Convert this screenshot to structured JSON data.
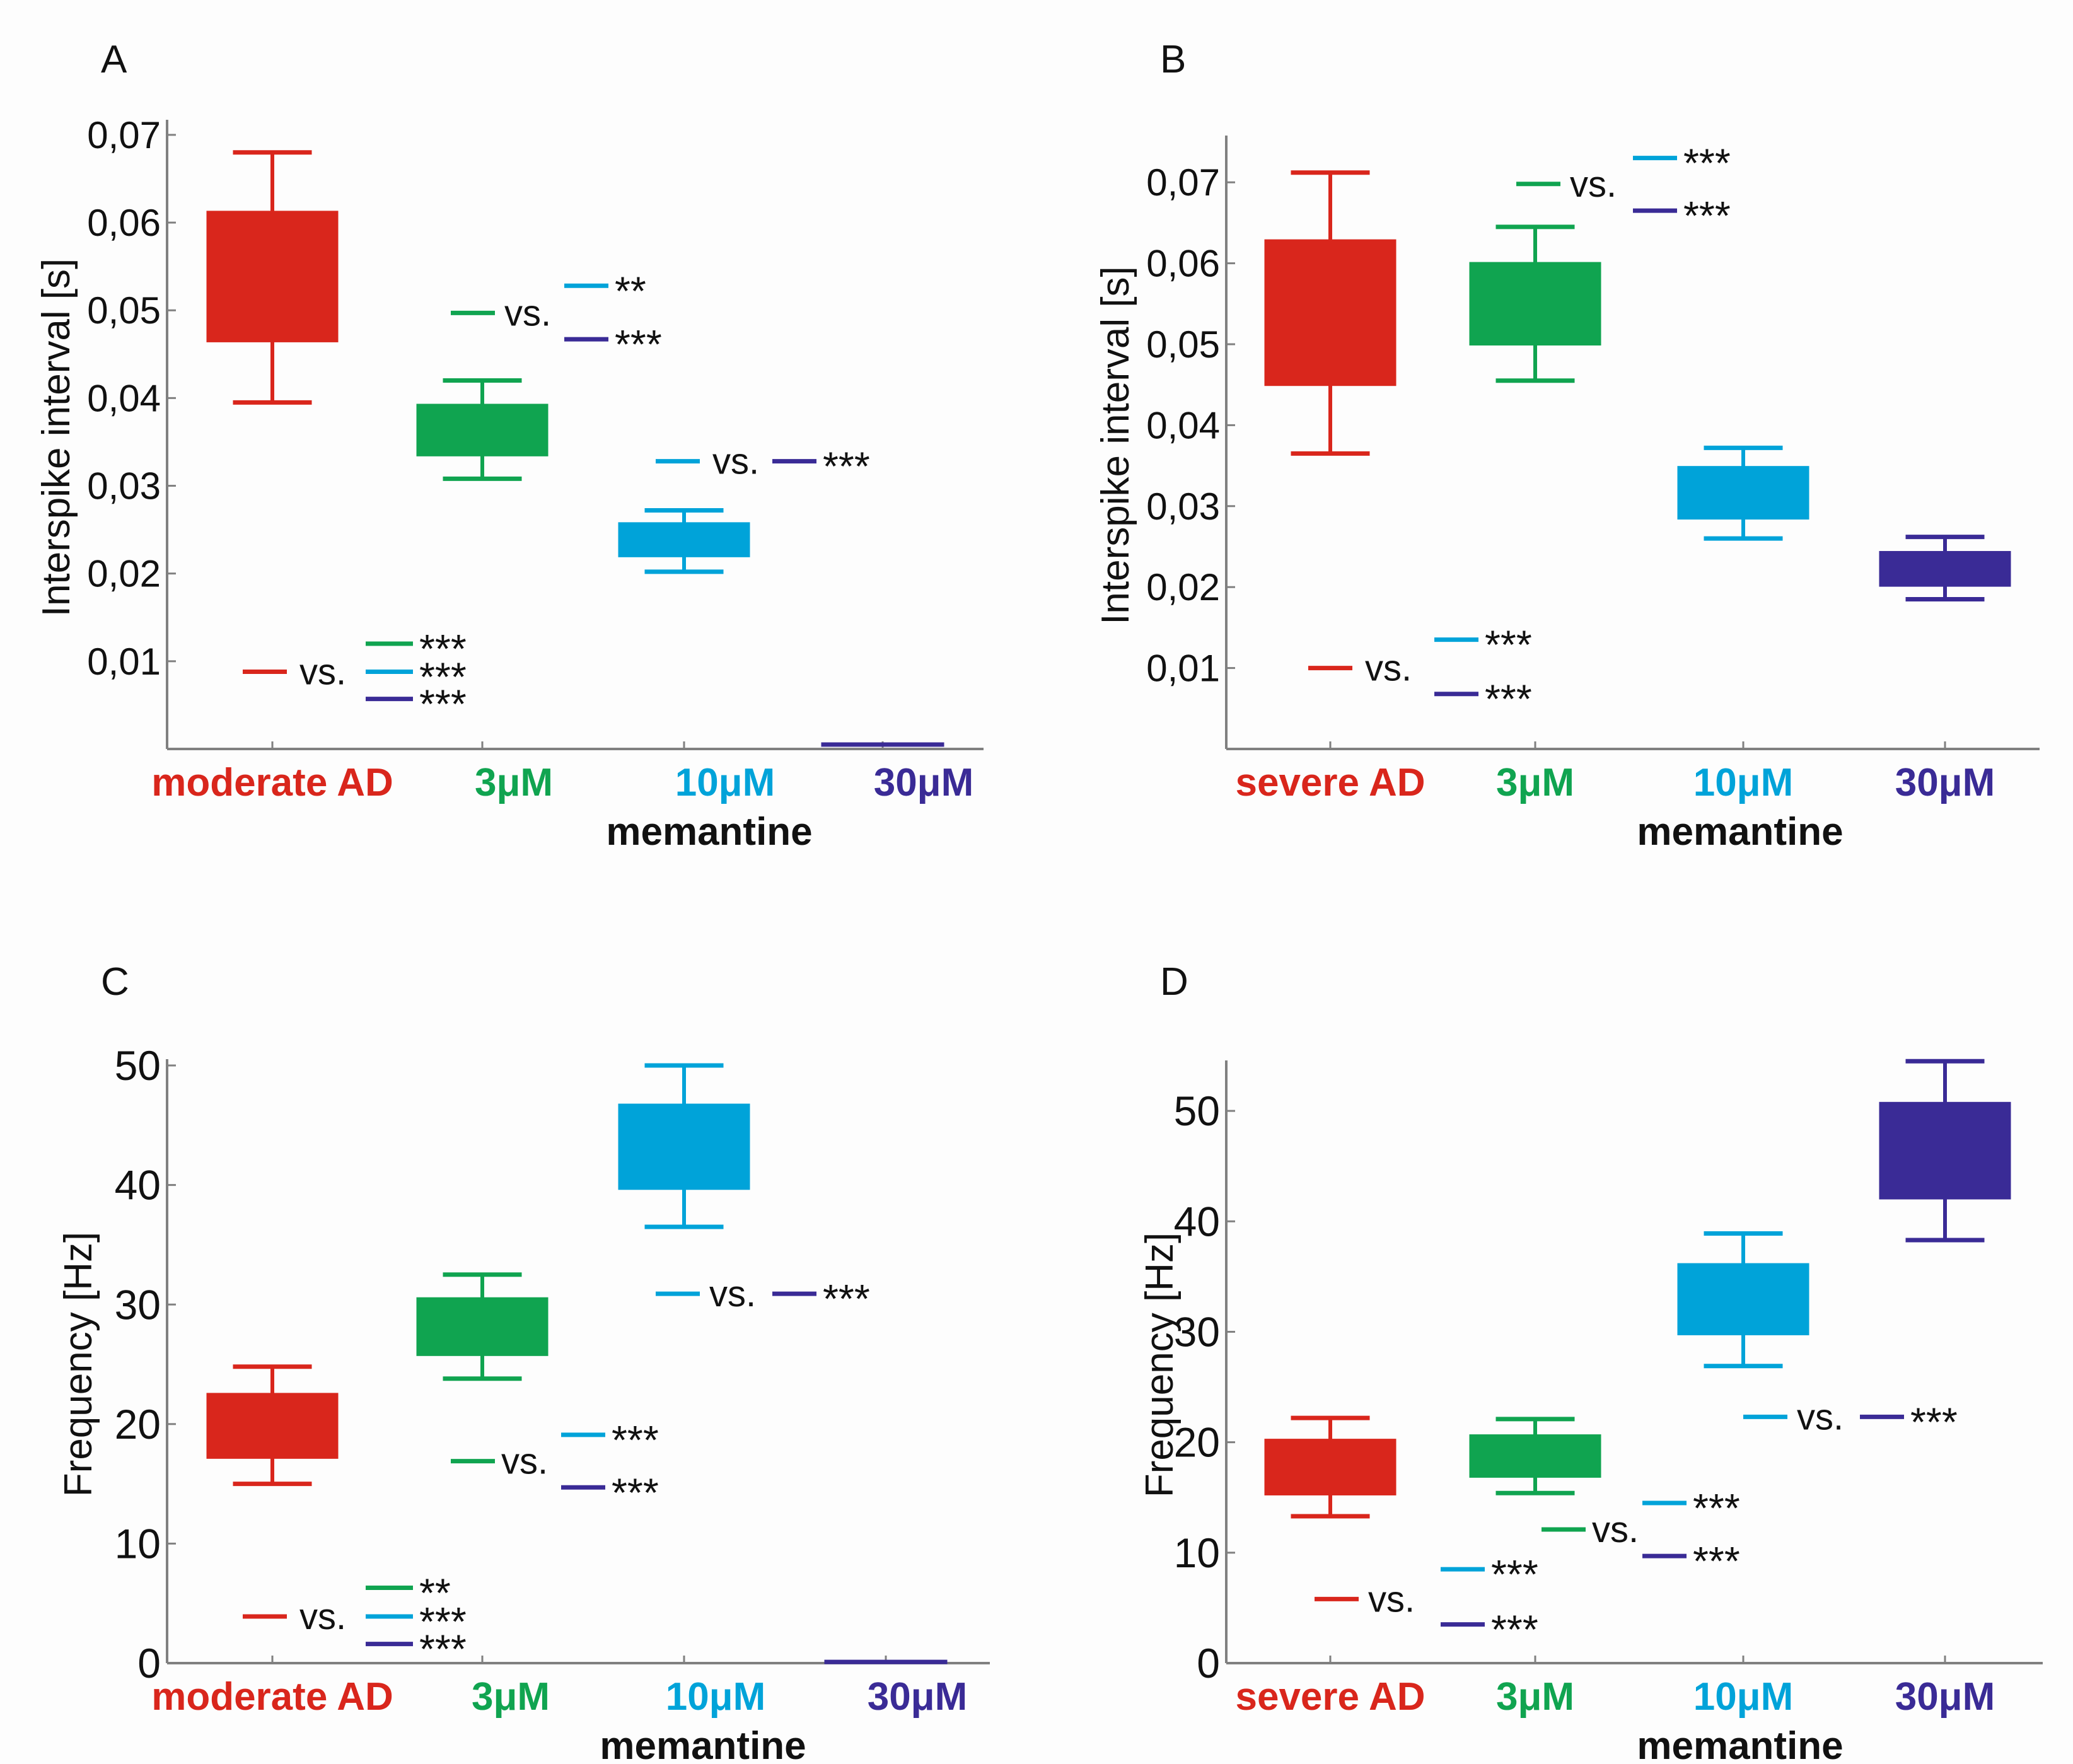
{
  "colors": {
    "moderate_ad": "#d9261c",
    "severe_ad": "#d9261c",
    "m3": "#10a450",
    "m10": "#00a3d9",
    "m30": "#3a2b96",
    "axis": "#808080",
    "text": "#111111"
  },
  "chart_data": [
    {
      "panel": "A",
      "type": "box",
      "ylabel": "Interspike interval [s]",
      "ylim": [
        0,
        0.071
      ],
      "yticks": [
        0.01,
        0.02,
        0.03,
        0.04,
        0.05,
        0.06,
        0.07
      ],
      "ytick_labels": [
        "0,01",
        "0,02",
        "0,03",
        "0,04",
        "0,05",
        "0,06",
        "0,07"
      ],
      "xlabel": "memantine",
      "categories": [
        "moderate AD",
        "3μM",
        "10μM",
        "30μM"
      ],
      "category_colors": [
        "moderate_ad",
        "m3",
        "m10",
        "m30"
      ],
      "boxes": [
        {
          "low": 0.0395,
          "q1": 0.0465,
          "q3": 0.0612,
          "high": 0.068
        },
        {
          "low": 0.0308,
          "q1": 0.0335,
          "q3": 0.0392,
          "high": 0.042
        },
        {
          "low": 0.0202,
          "q1": 0.022,
          "q3": 0.0257,
          "high": 0.0272
        },
        {
          "low": 0.0005,
          "q1": 0.0005,
          "q3": 0.0005,
          "high": 0.0005
        }
      ],
      "annotations": [
        {
          "ref": "moderate_ad",
          "ref_y": 0.0088,
          "comparisons": [
            {
              "color": "m3",
              "y": 0.012,
              "stars": "***"
            },
            {
              "color": "m10",
              "y": 0.0088,
              "stars": "***"
            },
            {
              "color": "m30",
              "y": 0.0057,
              "stars": "***"
            }
          ]
        },
        {
          "ref": "m3",
          "ref_y": 0.0497,
          "comparisons": [
            {
              "color": "m10",
              "y": 0.0528,
              "stars": "**"
            },
            {
              "color": "m30",
              "y": 0.0467,
              "stars": "***"
            }
          ]
        },
        {
          "ref": "m10",
          "ref_y": 0.0328,
          "comparisons": [
            {
              "color": "m30",
              "y": 0.0328,
              "stars": "***"
            }
          ]
        }
      ]
    },
    {
      "panel": "B",
      "type": "box",
      "ylabel": "Interspike interval [s]",
      "ylim": [
        0,
        0.075
      ],
      "yticks": [
        0.01,
        0.02,
        0.03,
        0.04,
        0.05,
        0.06,
        0.07
      ],
      "ytick_labels": [
        "0,01",
        "0,02",
        "0,03",
        "0,04",
        "0,05",
        "0,06",
        "0,07"
      ],
      "xlabel": "memantine",
      "categories": [
        "severe AD",
        "3μM",
        "10μM",
        "30μM"
      ],
      "category_colors": [
        "severe_ad",
        "m3",
        "m10",
        "m30"
      ],
      "boxes": [
        {
          "low": 0.0365,
          "q1": 0.045,
          "q3": 0.0628,
          "high": 0.0712
        },
        {
          "low": 0.0455,
          "q1": 0.05,
          "q3": 0.06,
          "high": 0.0645
        },
        {
          "low": 0.026,
          "q1": 0.0285,
          "q3": 0.0348,
          "high": 0.0372
        },
        {
          "low": 0.0185,
          "q1": 0.0202,
          "q3": 0.0243,
          "high": 0.0262
        }
      ],
      "annotations": [
        {
          "ref": "severe_ad",
          "ref_y": 0.01,
          "comparisons": [
            {
              "color": "m10",
              "y": 0.0135,
              "stars": "***"
            },
            {
              "color": "m30",
              "y": 0.0068,
              "stars": "***"
            }
          ]
        },
        {
          "ref": "m3",
          "ref_y": 0.0698,
          "comparisons": [
            {
              "color": "m10",
              "y": 0.073,
              "stars": "***"
            },
            {
              "color": "m30",
              "y": 0.0665,
              "stars": "***"
            }
          ]
        }
      ]
    },
    {
      "panel": "C",
      "type": "box",
      "ylabel": "Frequency [Hz]",
      "ylim": [
        0,
        50
      ],
      "yticks": [
        0,
        10,
        20,
        30,
        40,
        50
      ],
      "ytick_labels": [
        "0",
        "10",
        "20",
        "30",
        "40",
        "50"
      ],
      "xlabel": "memantine",
      "categories": [
        "moderate AD",
        "3μM",
        "10μM",
        "30μM"
      ],
      "category_colors": [
        "moderate_ad",
        "m3",
        "m10",
        "m30"
      ],
      "boxes": [
        {
          "low": 15,
          "q1": 17.2,
          "q3": 22.5,
          "high": 24.8
        },
        {
          "low": 23.8,
          "q1": 25.8,
          "q3": 30.5,
          "high": 32.5
        },
        {
          "low": 36.5,
          "q1": 39.7,
          "q3": 46.7,
          "high": 50
        },
        {
          "low": 0.1,
          "q1": 0.1,
          "q3": 0.1,
          "high": 0.1
        }
      ],
      "annotations": [
        {
          "ref": "moderate_ad",
          "ref_y": 3.9,
          "comparisons": [
            {
              "color": "m3",
              "y": 6.3,
              "stars": "**"
            },
            {
              "color": "m10",
              "y": 3.9,
              "stars": "***"
            },
            {
              "color": "m30",
              "y": 1.6,
              "stars": "***"
            }
          ]
        },
        {
          "ref": "m3",
          "ref_y": 16.9,
          "comparisons": [
            {
              "color": "m10",
              "y": 19.1,
              "stars": "***"
            },
            {
              "color": "m30",
              "y": 14.7,
              "stars": "***"
            }
          ]
        },
        {
          "ref": "m10",
          "ref_y": 30.9,
          "comparisons": [
            {
              "color": "m30",
              "y": 30.9,
              "stars": "***"
            }
          ]
        }
      ]
    },
    {
      "panel": "D",
      "type": "box",
      "ylabel": "Frequency [Hz]",
      "ylim": [
        0,
        54
      ],
      "yticks": [
        0,
        10,
        20,
        30,
        40,
        50
      ],
      "ytick_labels": [
        "0",
        "10",
        "20",
        "30",
        "40",
        "50"
      ],
      "xlabel": "memantine",
      "categories": [
        "severe AD",
        "3μM",
        "10μM",
        "30μM"
      ],
      "category_colors": [
        "severe_ad",
        "m3",
        "m10",
        "m30"
      ],
      "boxes": [
        {
          "low": 13.3,
          "q1": 15.3,
          "q3": 20.2,
          "high": 22.2
        },
        {
          "low": 15.4,
          "q1": 16.9,
          "q3": 20.6,
          "high": 22.1
        },
        {
          "low": 26.9,
          "q1": 29.8,
          "q3": 36.1,
          "high": 38.9
        },
        {
          "low": 38.3,
          "q1": 42.1,
          "q3": 50.7,
          "high": 54.5
        }
      ],
      "annotations": [
        {
          "ref": "severe_ad",
          "ref_y": 5.8,
          "comparisons": [
            {
              "color": "m10",
              "y": 8.5,
              "stars": "***"
            },
            {
              "color": "m30",
              "y": 3.5,
              "stars": "***"
            }
          ]
        },
        {
          "ref": "m3",
          "ref_y": 12.1,
          "comparisons": [
            {
              "color": "m10",
              "y": 14.5,
              "stars": "***"
            },
            {
              "color": "m30",
              "y": 9.7,
              "stars": "***"
            }
          ]
        },
        {
          "ref": "m10",
          "ref_y": 22.3,
          "comparisons": [
            {
              "color": "m30",
              "y": 22.3,
              "stars": "***"
            }
          ]
        }
      ]
    }
  ],
  "vs_label": "vs."
}
